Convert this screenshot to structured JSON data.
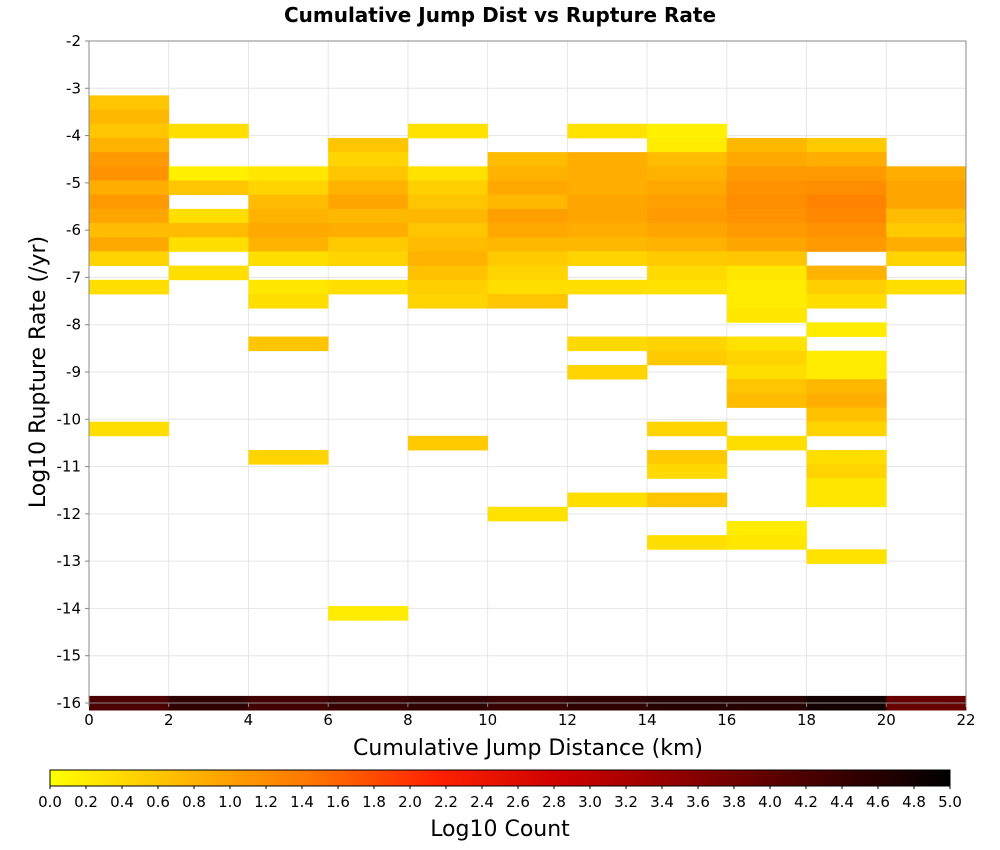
{
  "chart_data": {
    "type": "heatmap",
    "title": "Cumulative Jump Dist vs Rupture Rate",
    "xlabel": "Cumulative Jump Distance (km)",
    "ylabel": "Log10 Rupture Rate (/yr)",
    "xlim": [
      0,
      22
    ],
    "ylim": [
      -16,
      -2
    ],
    "x_ticks": [
      0,
      2,
      4,
      6,
      8,
      10,
      12,
      14,
      16,
      18,
      20,
      22
    ],
    "y_ticks": [
      -2,
      -3,
      -4,
      -5,
      -6,
      -7,
      -8,
      -9,
      -10,
      -11,
      -12,
      -13,
      -14,
      -15,
      -16
    ],
    "grid": true,
    "x_bin_width": 2,
    "y_bin_height": 0.3,
    "cells": [
      {
        "x": 1,
        "y": -3.3,
        "v": 0.6
      },
      {
        "x": 1,
        "y": -3.6,
        "v": 0.75
      },
      {
        "x": 1,
        "y": -3.9,
        "v": 0.6
      },
      {
        "x": 1,
        "y": -4.2,
        "v": 0.8
      },
      {
        "x": 1,
        "y": -4.5,
        "v": 1.05
      },
      {
        "x": 1,
        "y": -4.8,
        "v": 1.15
      },
      {
        "x": 1,
        "y": -5.1,
        "v": 0.85
      },
      {
        "x": 1,
        "y": -5.4,
        "v": 1.05
      },
      {
        "x": 1,
        "y": -5.7,
        "v": 0.95
      },
      {
        "x": 1,
        "y": -6.0,
        "v": 0.7
      },
      {
        "x": 1,
        "y": -6.3,
        "v": 0.9
      },
      {
        "x": 1,
        "y": -6.6,
        "v": 0.45
      },
      {
        "x": 1,
        "y": -7.2,
        "v": 0.35
      },
      {
        "x": 1,
        "y": -10.2,
        "v": 0.35
      },
      {
        "x": 3,
        "y": -3.9,
        "v": 0.35
      },
      {
        "x": 3,
        "y": -4.8,
        "v": 0.15
      },
      {
        "x": 3,
        "y": -5.1,
        "v": 0.6
      },
      {
        "x": 3,
        "y": -5.7,
        "v": 0.35
      },
      {
        "x": 3,
        "y": -6.0,
        "v": 0.7
      },
      {
        "x": 3,
        "y": -6.3,
        "v": 0.35
      },
      {
        "x": 3,
        "y": -6.9,
        "v": 0.35
      },
      {
        "x": 5,
        "y": -4.8,
        "v": 0.25
      },
      {
        "x": 5,
        "y": -5.1,
        "v": 0.45
      },
      {
        "x": 5,
        "y": -5.4,
        "v": 0.7
      },
      {
        "x": 5,
        "y": -5.7,
        "v": 0.8
      },
      {
        "x": 5,
        "y": -6.0,
        "v": 0.9
      },
      {
        "x": 5,
        "y": -6.3,
        "v": 0.8
      },
      {
        "x": 5,
        "y": -6.6,
        "v": 0.35
      },
      {
        "x": 5,
        "y": -7.2,
        "v": 0.25
      },
      {
        "x": 5,
        "y": -7.5,
        "v": 0.35
      },
      {
        "x": 5,
        "y": -8.4,
        "v": 0.6
      },
      {
        "x": 5,
        "y": -10.8,
        "v": 0.45
      },
      {
        "x": 7,
        "y": -4.2,
        "v": 0.6
      },
      {
        "x": 7,
        "y": -4.5,
        "v": 0.45
      },
      {
        "x": 7,
        "y": -4.8,
        "v": 0.6
      },
      {
        "x": 7,
        "y": -5.1,
        "v": 0.8
      },
      {
        "x": 7,
        "y": -5.4,
        "v": 0.95
      },
      {
        "x": 7,
        "y": -5.7,
        "v": 0.75
      },
      {
        "x": 7,
        "y": -6.0,
        "v": 0.85
      },
      {
        "x": 7,
        "y": -6.3,
        "v": 0.55
      },
      {
        "x": 7,
        "y": -6.6,
        "v": 0.45
      },
      {
        "x": 7,
        "y": -7.2,
        "v": 0.35
      },
      {
        "x": 7,
        "y": -14.1,
        "v": 0.2
      },
      {
        "x": 9,
        "y": -3.9,
        "v": 0.3
      },
      {
        "x": 9,
        "y": -4.8,
        "v": 0.3
      },
      {
        "x": 9,
        "y": -5.1,
        "v": 0.5
      },
      {
        "x": 9,
        "y": -5.4,
        "v": 0.6
      },
      {
        "x": 9,
        "y": -5.7,
        "v": 0.75
      },
      {
        "x": 9,
        "y": -6.0,
        "v": 0.6
      },
      {
        "x": 9,
        "y": -6.3,
        "v": 0.7
      },
      {
        "x": 9,
        "y": -6.6,
        "v": 0.8
      },
      {
        "x": 9,
        "y": -6.9,
        "v": 0.65
      },
      {
        "x": 9,
        "y": -7.2,
        "v": 0.5
      },
      {
        "x": 9,
        "y": -7.5,
        "v": 0.45
      },
      {
        "x": 9,
        "y": -10.5,
        "v": 0.55
      },
      {
        "x": 11,
        "y": -4.5,
        "v": 0.7
      },
      {
        "x": 11,
        "y": -4.8,
        "v": 0.8
      },
      {
        "x": 11,
        "y": -5.1,
        "v": 0.9
      },
      {
        "x": 11,
        "y": -5.4,
        "v": 0.75
      },
      {
        "x": 11,
        "y": -5.7,
        "v": 1.0
      },
      {
        "x": 11,
        "y": -6.0,
        "v": 0.9
      },
      {
        "x": 11,
        "y": -6.3,
        "v": 0.75
      },
      {
        "x": 11,
        "y": -6.6,
        "v": 0.55
      },
      {
        "x": 11,
        "y": -6.9,
        "v": 0.45
      },
      {
        "x": 11,
        "y": -7.2,
        "v": 0.35
      },
      {
        "x": 11,
        "y": -7.5,
        "v": 0.6
      },
      {
        "x": 11,
        "y": -12.0,
        "v": 0.3
      },
      {
        "x": 13,
        "y": -3.9,
        "v": 0.3
      },
      {
        "x": 13,
        "y": -4.5,
        "v": 0.85
      },
      {
        "x": 13,
        "y": -4.8,
        "v": 0.85
      },
      {
        "x": 13,
        "y": -5.1,
        "v": 0.85
      },
      {
        "x": 13,
        "y": -5.4,
        "v": 0.95
      },
      {
        "x": 13,
        "y": -5.7,
        "v": 0.95
      },
      {
        "x": 13,
        "y": -6.0,
        "v": 0.85
      },
      {
        "x": 13,
        "y": -6.3,
        "v": 0.75
      },
      {
        "x": 13,
        "y": -6.6,
        "v": 0.45
      },
      {
        "x": 13,
        "y": -7.2,
        "v": 0.35
      },
      {
        "x": 13,
        "y": -8.4,
        "v": 0.4
      },
      {
        "x": 13,
        "y": -9.0,
        "v": 0.45
      },
      {
        "x": 13,
        "y": -11.7,
        "v": 0.35
      },
      {
        "x": 15,
        "y": -3.9,
        "v": 0.15
      },
      {
        "x": 15,
        "y": -4.2,
        "v": 0.2
      },
      {
        "x": 15,
        "y": -4.5,
        "v": 0.7
      },
      {
        "x": 15,
        "y": -4.8,
        "v": 0.8
      },
      {
        "x": 15,
        "y": -5.1,
        "v": 0.9
      },
      {
        "x": 15,
        "y": -5.4,
        "v": 1.0
      },
      {
        "x": 15,
        "y": -5.7,
        "v": 1.05
      },
      {
        "x": 15,
        "y": -6.0,
        "v": 0.95
      },
      {
        "x": 15,
        "y": -6.3,
        "v": 0.8
      },
      {
        "x": 15,
        "y": -6.6,
        "v": 0.55
      },
      {
        "x": 15,
        "y": -6.9,
        "v": 0.4
      },
      {
        "x": 15,
        "y": -7.2,
        "v": 0.3
      },
      {
        "x": 15,
        "y": -8.4,
        "v": 0.45
      },
      {
        "x": 15,
        "y": -8.7,
        "v": 0.55
      },
      {
        "x": 15,
        "y": -10.2,
        "v": 0.45
      },
      {
        "x": 15,
        "y": -10.8,
        "v": 0.55
      },
      {
        "x": 15,
        "y": -11.1,
        "v": 0.4
      },
      {
        "x": 15,
        "y": -11.7,
        "v": 0.6
      },
      {
        "x": 15,
        "y": -12.6,
        "v": 0.35
      },
      {
        "x": 17,
        "y": -4.2,
        "v": 0.75
      },
      {
        "x": 17,
        "y": -4.5,
        "v": 0.9
      },
      {
        "x": 17,
        "y": -4.8,
        "v": 1.05
      },
      {
        "x": 17,
        "y": -5.1,
        "v": 1.15
      },
      {
        "x": 17,
        "y": -5.4,
        "v": 1.2
      },
      {
        "x": 17,
        "y": -5.7,
        "v": 1.15
      },
      {
        "x": 17,
        "y": -6.0,
        "v": 1.05
      },
      {
        "x": 17,
        "y": -6.3,
        "v": 0.95
      },
      {
        "x": 17,
        "y": -6.6,
        "v": 0.6
      },
      {
        "x": 17,
        "y": -6.9,
        "v": 0.25
      },
      {
        "x": 17,
        "y": -7.2,
        "v": 0.2
      },
      {
        "x": 17,
        "y": -7.5,
        "v": 0.2
      },
      {
        "x": 17,
        "y": -7.8,
        "v": 0.25
      },
      {
        "x": 17,
        "y": -8.4,
        "v": 0.3
      },
      {
        "x": 17,
        "y": -8.7,
        "v": 0.45
      },
      {
        "x": 17,
        "y": -9.0,
        "v": 0.35
      },
      {
        "x": 17,
        "y": -9.3,
        "v": 0.6
      },
      {
        "x": 17,
        "y": -9.6,
        "v": 0.7
      },
      {
        "x": 17,
        "y": -10.5,
        "v": 0.35
      },
      {
        "x": 17,
        "y": -12.3,
        "v": 0.2
      },
      {
        "x": 17,
        "y": -12.6,
        "v": 0.25
      },
      {
        "x": 19,
        "y": -4.2,
        "v": 0.55
      },
      {
        "x": 19,
        "y": -4.5,
        "v": 0.85
      },
      {
        "x": 19,
        "y": -4.8,
        "v": 1.05
      },
      {
        "x": 19,
        "y": -5.1,
        "v": 1.2
      },
      {
        "x": 19,
        "y": -5.4,
        "v": 1.3
      },
      {
        "x": 19,
        "y": -5.7,
        "v": 1.25
      },
      {
        "x": 19,
        "y": -6.0,
        "v": 1.15
      },
      {
        "x": 19,
        "y": -6.3,
        "v": 1.05
      },
      {
        "x": 19,
        "y": -6.9,
        "v": 0.8
      },
      {
        "x": 19,
        "y": -7.2,
        "v": 0.5
      },
      {
        "x": 19,
        "y": -7.5,
        "v": 0.35
      },
      {
        "x": 19,
        "y": -8.1,
        "v": 0.2
      },
      {
        "x": 19,
        "y": -8.7,
        "v": 0.2
      },
      {
        "x": 19,
        "y": -9.0,
        "v": 0.2
      },
      {
        "x": 19,
        "y": -9.3,
        "v": 0.75
      },
      {
        "x": 19,
        "y": -9.6,
        "v": 0.85
      },
      {
        "x": 19,
        "y": -9.9,
        "v": 0.65
      },
      {
        "x": 19,
        "y": -10.2,
        "v": 0.45
      },
      {
        "x": 19,
        "y": -10.8,
        "v": 0.35
      },
      {
        "x": 19,
        "y": -11.1,
        "v": 0.45
      },
      {
        "x": 19,
        "y": -11.4,
        "v": 0.25
      },
      {
        "x": 19,
        "y": -11.7,
        "v": 0.25
      },
      {
        "x": 19,
        "y": -12.9,
        "v": 0.3
      },
      {
        "x": 21,
        "y": -4.8,
        "v": 0.85
      },
      {
        "x": 21,
        "y": -5.1,
        "v": 0.95
      },
      {
        "x": 21,
        "y": -5.4,
        "v": 0.95
      },
      {
        "x": 21,
        "y": -5.7,
        "v": 0.7
      },
      {
        "x": 21,
        "y": -6.0,
        "v": 0.55
      },
      {
        "x": 21,
        "y": -6.3,
        "v": 0.85
      },
      {
        "x": 21,
        "y": -6.6,
        "v": 0.45
      },
      {
        "x": 21,
        "y": -7.2,
        "v": 0.35
      },
      {
        "x": 1,
        "y": -16.0,
        "v": 4.2
      },
      {
        "x": 3,
        "y": -16.0,
        "v": 4.5
      },
      {
        "x": 5,
        "y": -16.0,
        "v": 4.3
      },
      {
        "x": 7,
        "y": -16.0,
        "v": 4.4
      },
      {
        "x": 9,
        "y": -16.0,
        "v": 4.5
      },
      {
        "x": 11,
        "y": -16.0,
        "v": 4.4
      },
      {
        "x": 13,
        "y": -16.0,
        "v": 4.5
      },
      {
        "x": 15,
        "y": -16.0,
        "v": 4.6
      },
      {
        "x": 17,
        "y": -16.0,
        "v": 4.6
      },
      {
        "x": 19,
        "y": -16.0,
        "v": 4.8
      },
      {
        "x": 21,
        "y": -16.0,
        "v": 3.9
      }
    ],
    "colorbar": {
      "label": "Log10 Count",
      "min": 0.0,
      "max": 5.0,
      "ticks": [
        "0.0",
        "0.2",
        "0.4",
        "0.6",
        "0.8",
        "1.0",
        "1.2",
        "1.4",
        "1.6",
        "1.8",
        "2.0",
        "2.2",
        "2.4",
        "2.6",
        "2.8",
        "3.0",
        "3.2",
        "3.4",
        "3.6",
        "3.8",
        "4.0",
        "4.2",
        "4.4",
        "4.6",
        "4.8",
        "5.0"
      ],
      "colors": [
        "#ffff00",
        "#ffbb00",
        "#ff7700",
        "#ff2200",
        "#cc0000",
        "#880000",
        "#440000",
        "#000000"
      ]
    }
  }
}
